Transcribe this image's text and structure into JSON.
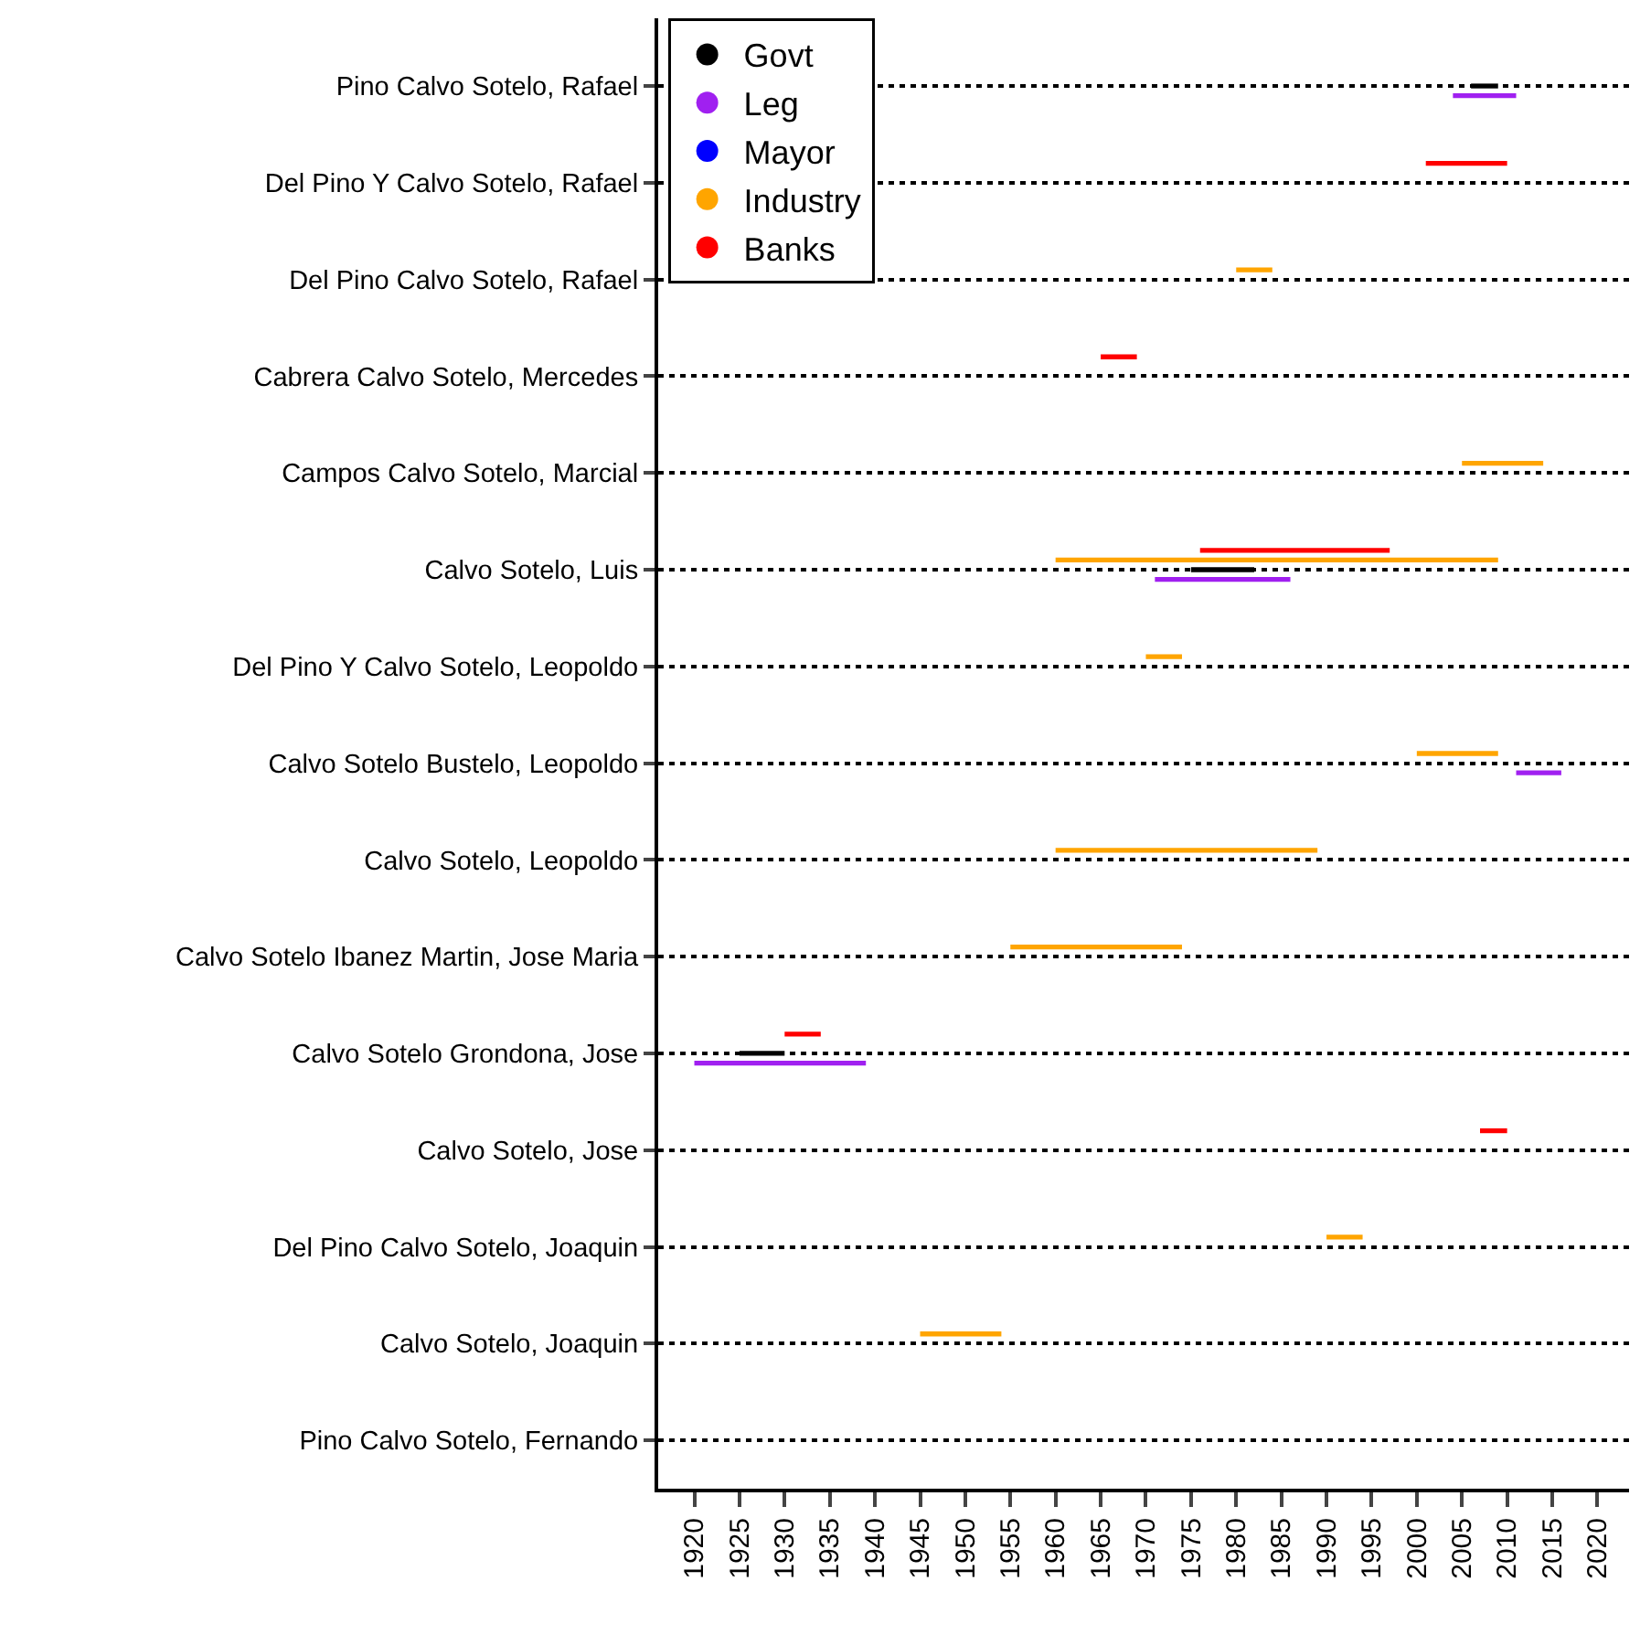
{
  "chart_data": {
    "type": "bar",
    "orientation": "horizontal",
    "categories": [
      "Pino Calvo Sotelo, Rafael",
      "Del Pino Y Calvo Sotelo, Rafael",
      "Del Pino Calvo Sotelo, Rafael",
      "Cabrera Calvo Sotelo, Mercedes",
      "Campos Calvo Sotelo, Marcial",
      "Calvo Sotelo, Luis",
      "Del Pino Y Calvo Sotelo, Leopoldo",
      "Calvo Sotelo Bustelo, Leopoldo",
      "Calvo Sotelo, Leopoldo",
      "Calvo Sotelo Ibanez Martin, Jose Maria",
      "Calvo Sotelo Grondona, Jose",
      "Calvo Sotelo, Jose",
      "Del Pino Calvo Sotelo, Joaquin",
      "Calvo Sotelo, Joaquin",
      "Pino Calvo Sotelo, Fernando"
    ],
    "series": [
      {
        "name": "Govt",
        "color": "#000000",
        "base": [
          2006,
          null,
          null,
          null,
          null,
          1975,
          null,
          null,
          null,
          null,
          1925,
          null,
          null,
          null,
          null
        ],
        "values": [
          3,
          null,
          null,
          null,
          null,
          7,
          null,
          null,
          null,
          null,
          5,
          null,
          null,
          null,
          null
        ]
      },
      {
        "name": "Leg",
        "color": "#a020f0",
        "base": [
          2004,
          null,
          null,
          null,
          null,
          1971,
          null,
          2011,
          null,
          null,
          1920,
          null,
          null,
          null,
          null
        ],
        "values": [
          7,
          null,
          null,
          null,
          null,
          15,
          null,
          5,
          null,
          null,
          19,
          null,
          null,
          null,
          null
        ]
      },
      {
        "name": "Mayor",
        "color": "#0000ff",
        "base": [
          null,
          null,
          null,
          null,
          null,
          null,
          null,
          null,
          null,
          null,
          null,
          null,
          null,
          null,
          null
        ],
        "values": [
          null,
          null,
          null,
          null,
          null,
          null,
          null,
          null,
          null,
          null,
          null,
          null,
          null,
          null,
          null
        ]
      },
      {
        "name": "Industry",
        "color": "#ffa500",
        "base": [
          null,
          null,
          1980,
          null,
          2005,
          1960,
          1970,
          2000,
          1960,
          1955,
          null,
          null,
          1990,
          1945,
          null
        ],
        "values": [
          null,
          null,
          4,
          null,
          9,
          49,
          4,
          9,
          29,
          19,
          null,
          null,
          4,
          9,
          null
        ]
      },
      {
        "name": "Banks",
        "color": "#ff0000",
        "base": [
          null,
          2001,
          null,
          1965,
          null,
          1976,
          null,
          null,
          null,
          null,
          1930,
          2007,
          null,
          null,
          null
        ],
        "values": [
          null,
          9,
          null,
          4,
          null,
          21,
          null,
          null,
          null,
          null,
          4,
          3,
          null,
          null,
          null
        ]
      }
    ],
    "xlim": [
      1916,
      2023.5
    ],
    "xticks": [
      1920,
      1925,
      1930,
      1935,
      1940,
      1945,
      1950,
      1955,
      1960,
      1965,
      1970,
      1975,
      1980,
      1985,
      1990,
      1995,
      2000,
      2005,
      2010,
      2015,
      2020
    ],
    "grid": "y",
    "line_style": "dotted",
    "legend": "top left",
    "marker": "circle"
  }
}
